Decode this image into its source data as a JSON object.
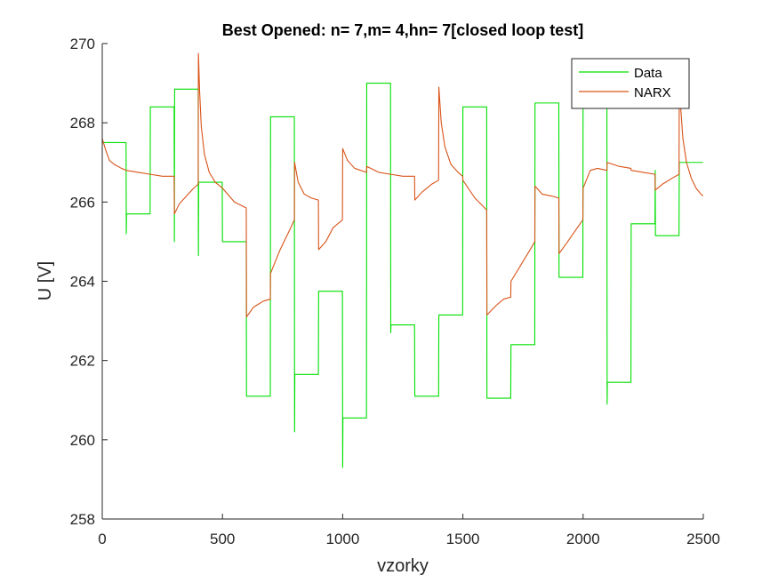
{
  "chart_data": {
    "type": "line",
    "title": "Best Opened: n= 7,m= 4,hn= 7[closed loop test]",
    "xlabel": "vzorky",
    "ylabel": "U [V]",
    "xlim": [
      0,
      2500
    ],
    "ylim": [
      258,
      270
    ],
    "xticks": [
      0,
      500,
      1000,
      1500,
      2000,
      2500
    ],
    "yticks": [
      258,
      260,
      262,
      264,
      266,
      268,
      270
    ],
    "grid": false,
    "legend_position": "top-right",
    "series": [
      {
        "name": "Data",
        "color": "#00e000",
        "points": [
          [
            0,
            267.5
          ],
          [
            99,
            267.5
          ],
          [
            100,
            265.2
          ],
          [
            101,
            265.7
          ],
          [
            199,
            265.7
          ],
          [
            200,
            268.4
          ],
          [
            299,
            268.4
          ],
          [
            300,
            265.0
          ],
          [
            301,
            268.85
          ],
          [
            399,
            268.85
          ],
          [
            400,
            264.65
          ],
          [
            401,
            266.5
          ],
          [
            499,
            266.5
          ],
          [
            500,
            265.0
          ],
          [
            599,
            265.0
          ],
          [
            600,
            261.1
          ],
          [
            699,
            261.1
          ],
          [
            700,
            268.15
          ],
          [
            799,
            268.15
          ],
          [
            800,
            260.2
          ],
          [
            801,
            261.65
          ],
          [
            899,
            261.65
          ],
          [
            900,
            263.75
          ],
          [
            999,
            263.75
          ],
          [
            1000,
            259.3
          ],
          [
            1001,
            260.55
          ],
          [
            1099,
            260.55
          ],
          [
            1100,
            269.0
          ],
          [
            1199,
            269.0
          ],
          [
            1200,
            262.7
          ],
          [
            1201,
            262.9
          ],
          [
            1299,
            262.9
          ],
          [
            1300,
            261.1
          ],
          [
            1399,
            261.1
          ],
          [
            1400,
            263.15
          ],
          [
            1499,
            263.15
          ],
          [
            1500,
            268.4
          ],
          [
            1599,
            268.4
          ],
          [
            1600,
            261.05
          ],
          [
            1699,
            261.05
          ],
          [
            1700,
            262.4
          ],
          [
            1799,
            262.4
          ],
          [
            1800,
            268.5
          ],
          [
            1899,
            268.5
          ],
          [
            1900,
            264.1
          ],
          [
            1999,
            264.1
          ],
          [
            2000,
            268.7
          ],
          [
            2099,
            268.7
          ],
          [
            2100,
            260.9
          ],
          [
            2101,
            261.45
          ],
          [
            2199,
            261.45
          ],
          [
            2200,
            265.45
          ],
          [
            2299,
            265.45
          ],
          [
            2300,
            266.8
          ],
          [
            2301,
            265.15
          ],
          [
            2399,
            265.15
          ],
          [
            2400,
            267.0
          ],
          [
            2499,
            267.0
          ]
        ]
      },
      {
        "name": "NARX",
        "color": "#d95319",
        "points": [
          [
            0,
            267.6
          ],
          [
            15,
            267.3
          ],
          [
            30,
            267.05
          ],
          [
            50,
            266.95
          ],
          [
            80,
            266.85
          ],
          [
            99,
            266.8
          ],
          [
            150,
            266.75
          ],
          [
            200,
            266.7
          ],
          [
            250,
            266.65
          ],
          [
            299,
            266.65
          ],
          [
            300,
            265.7
          ],
          [
            320,
            265.95
          ],
          [
            350,
            266.15
          ],
          [
            380,
            266.35
          ],
          [
            399,
            266.45
          ],
          [
            400,
            269.75
          ],
          [
            405,
            268.8
          ],
          [
            412,
            267.9
          ],
          [
            425,
            267.2
          ],
          [
            445,
            266.75
          ],
          [
            470,
            266.5
          ],
          [
            500,
            266.35
          ],
          [
            550,
            266.0
          ],
          [
            599,
            265.85
          ],
          [
            600,
            263.1
          ],
          [
            630,
            263.35
          ],
          [
            670,
            263.5
          ],
          [
            699,
            263.55
          ],
          [
            700,
            264.2
          ],
          [
            740,
            264.8
          ],
          [
            780,
            265.3
          ],
          [
            799,
            265.55
          ],
          [
            800,
            267.0
          ],
          [
            815,
            266.5
          ],
          [
            840,
            266.2
          ],
          [
            870,
            266.1
          ],
          [
            899,
            266.05
          ],
          [
            900,
            264.8
          ],
          [
            930,
            265.0
          ],
          [
            960,
            265.35
          ],
          [
            999,
            265.55
          ],
          [
            1000,
            267.35
          ],
          [
            1020,
            267.05
          ],
          [
            1050,
            266.85
          ],
          [
            1099,
            266.75
          ],
          [
            1100,
            266.9
          ],
          [
            1150,
            266.75
          ],
          [
            1199,
            266.7
          ],
          [
            1200,
            266.7
          ],
          [
            1250,
            266.65
          ],
          [
            1299,
            266.65
          ],
          [
            1300,
            266.05
          ],
          [
            1330,
            266.25
          ],
          [
            1370,
            266.45
          ],
          [
            1399,
            266.55
          ],
          [
            1400,
            268.9
          ],
          [
            1410,
            268.0
          ],
          [
            1425,
            267.4
          ],
          [
            1450,
            266.95
          ],
          [
            1480,
            266.75
          ],
          [
            1499,
            266.65
          ],
          [
            1500,
            266.55
          ],
          [
            1550,
            266.1
          ],
          [
            1599,
            265.8
          ],
          [
            1600,
            263.15
          ],
          [
            1640,
            263.4
          ],
          [
            1670,
            263.55
          ],
          [
            1699,
            263.6
          ],
          [
            1700,
            264.0
          ],
          [
            1740,
            264.4
          ],
          [
            1780,
            264.8
          ],
          [
            1799,
            265.0
          ],
          [
            1800,
            266.4
          ],
          [
            1830,
            266.2
          ],
          [
            1870,
            266.15
          ],
          [
            1899,
            266.1
          ],
          [
            1900,
            264.7
          ],
          [
            1930,
            264.95
          ],
          [
            1970,
            265.3
          ],
          [
            1999,
            265.55
          ],
          [
            2000,
            266.35
          ],
          [
            2030,
            266.8
          ],
          [
            2060,
            266.85
          ],
          [
            2099,
            266.8
          ],
          [
            2100,
            267.0
          ],
          [
            2150,
            266.9
          ],
          [
            2199,
            266.85
          ],
          [
            2200,
            266.8
          ],
          [
            2250,
            266.75
          ],
          [
            2299,
            266.7
          ],
          [
            2300,
            266.3
          ],
          [
            2330,
            266.45
          ],
          [
            2370,
            266.6
          ],
          [
            2399,
            266.7
          ],
          [
            2400,
            268.9
          ],
          [
            2415,
            267.6
          ],
          [
            2430,
            267.0
          ],
          [
            2450,
            266.6
          ],
          [
            2470,
            266.35
          ],
          [
            2490,
            266.2
          ],
          [
            2499,
            266.15
          ]
        ]
      }
    ]
  }
}
